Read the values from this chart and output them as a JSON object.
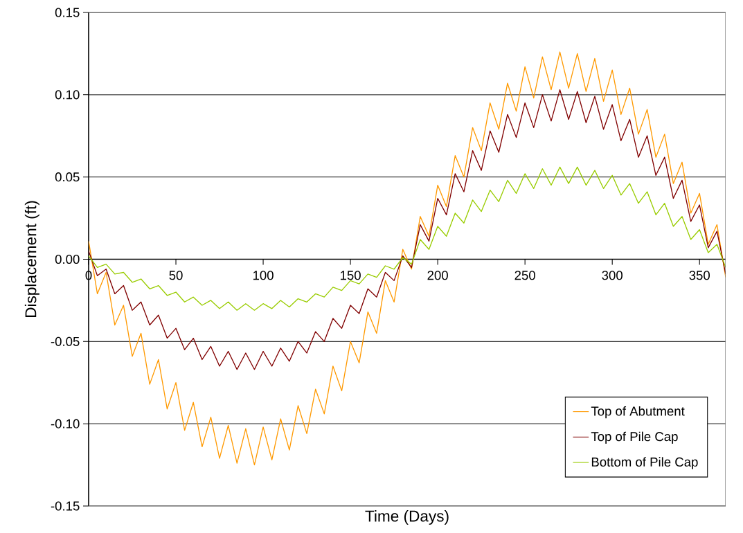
{
  "chart_data": {
    "type": "line",
    "xlabel": "Time (Days)",
    "ylabel": "Displacement (ft)",
    "x": [
      0,
      5,
      10,
      15,
      20,
      25,
      30,
      35,
      40,
      45,
      50,
      55,
      60,
      65,
      70,
      75,
      80,
      85,
      90,
      95,
      100,
      105,
      110,
      115,
      120,
      125,
      130,
      135,
      140,
      145,
      150,
      155,
      160,
      165,
      170,
      175,
      180,
      185,
      190,
      195,
      200,
      205,
      210,
      215,
      220,
      225,
      230,
      235,
      240,
      245,
      250,
      255,
      260,
      265,
      270,
      275,
      280,
      285,
      290,
      295,
      300,
      305,
      310,
      315,
      320,
      325,
      330,
      335,
      340,
      345,
      350,
      355,
      360,
      365
    ],
    "series": [
      {
        "name": "Top of Abutment",
        "color": "#ff9900",
        "values": [
          0.011,
          -0.021,
          -0.008,
          -0.04,
          -0.028,
          -0.059,
          -0.045,
          -0.076,
          -0.061,
          -0.091,
          -0.075,
          -0.104,
          -0.087,
          -0.114,
          -0.096,
          -0.121,
          -0.101,
          -0.124,
          -0.103,
          -0.125,
          -0.102,
          -0.122,
          -0.097,
          -0.116,
          -0.089,
          -0.106,
          -0.079,
          -0.094,
          -0.065,
          -0.08,
          -0.05,
          -0.063,
          -0.032,
          -0.045,
          -0.013,
          -0.026,
          0.006,
          -0.006,
          0.026,
          0.014,
          0.045,
          0.032,
          0.063,
          0.05,
          0.08,
          0.066,
          0.095,
          0.079,
          0.107,
          0.09,
          0.117,
          0.098,
          0.123,
          0.103,
          0.126,
          0.104,
          0.125,
          0.102,
          0.122,
          0.096,
          0.115,
          0.088,
          0.104,
          0.076,
          0.091,
          0.062,
          0.076,
          0.046,
          0.059,
          0.028,
          0.04,
          0.009,
          0.021,
          -0.011
        ]
      },
      {
        "name": "Top of Pile Cap",
        "color": "#800000",
        "values": [
          0.005,
          -0.01,
          -0.006,
          -0.021,
          -0.016,
          -0.031,
          -0.026,
          -0.04,
          -0.034,
          -0.048,
          -0.042,
          -0.055,
          -0.048,
          -0.061,
          -0.053,
          -0.065,
          -0.056,
          -0.067,
          -0.057,
          -0.067,
          -0.056,
          -0.065,
          -0.054,
          -0.062,
          -0.05,
          -0.057,
          -0.044,
          -0.05,
          -0.036,
          -0.042,
          -0.028,
          -0.033,
          -0.018,
          -0.023,
          -0.008,
          -0.013,
          0.002,
          -0.005,
          0.021,
          0.011,
          0.037,
          0.027,
          0.052,
          0.041,
          0.066,
          0.054,
          0.078,
          0.065,
          0.088,
          0.074,
          0.095,
          0.08,
          0.1,
          0.084,
          0.103,
          0.085,
          0.102,
          0.083,
          0.099,
          0.079,
          0.094,
          0.072,
          0.085,
          0.062,
          0.075,
          0.051,
          0.062,
          0.037,
          0.048,
          0.023,
          0.033,
          0.007,
          0.017,
          -0.009
        ]
      },
      {
        "name": "Bottom of Pile Cap",
        "color": "#99cc00",
        "values": [
          0.002,
          -0.005,
          -0.003,
          -0.009,
          -0.008,
          -0.014,
          -0.012,
          -0.018,
          -0.016,
          -0.022,
          -0.02,
          -0.026,
          -0.023,
          -0.028,
          -0.025,
          -0.03,
          -0.026,
          -0.031,
          -0.027,
          -0.031,
          -0.027,
          -0.03,
          -0.025,
          -0.029,
          -0.024,
          -0.026,
          -0.021,
          -0.023,
          -0.017,
          -0.019,
          -0.013,
          -0.015,
          -0.009,
          -0.011,
          -0.004,
          -0.006,
          0.001,
          -0.003,
          0.012,
          0.006,
          0.02,
          0.014,
          0.028,
          0.022,
          0.036,
          0.029,
          0.042,
          0.035,
          0.048,
          0.04,
          0.052,
          0.043,
          0.055,
          0.045,
          0.056,
          0.046,
          0.056,
          0.045,
          0.054,
          0.043,
          0.051,
          0.039,
          0.046,
          0.034,
          0.041,
          0.027,
          0.034,
          0.02,
          0.026,
          0.012,
          0.018,
          0.004,
          0.009,
          -0.005
        ]
      }
    ],
    "xlim": [
      0,
      365
    ],
    "ylim": [
      -0.15,
      0.15
    ],
    "xticks": [
      0,
      50,
      100,
      150,
      200,
      250,
      300,
      350
    ],
    "yticks": [
      {
        "value": -0.15,
        "label": "-0.15"
      },
      {
        "value": -0.1,
        "label": "-0.10"
      },
      {
        "value": -0.05,
        "label": "-0.05"
      },
      {
        "value": 0,
        "label": "0.00"
      },
      {
        "value": 0.05,
        "label": "0.05"
      },
      {
        "value": 0.1,
        "label": "0.10"
      },
      {
        "value": 0.15,
        "label": "0.15"
      }
    ],
    "grid": "y",
    "legend": "bottom right"
  }
}
